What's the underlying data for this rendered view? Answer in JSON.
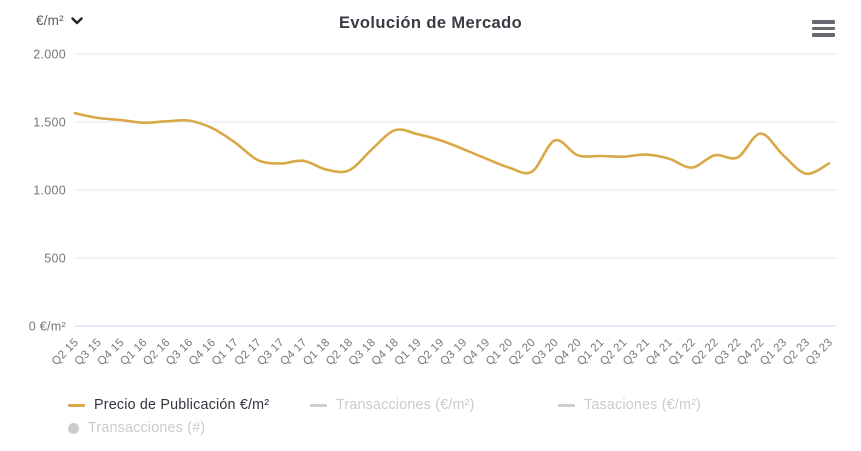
{
  "header": {
    "unit_selector": {
      "label": "€/m²",
      "icon": "chevron-down-icon"
    },
    "title": "Evolución de Mercado",
    "menu_icon": "hamburger-icon"
  },
  "y_axis": {
    "ticks": [
      {
        "value": 2000,
        "label": "2.000"
      },
      {
        "value": 1500,
        "label": "1.500"
      },
      {
        "value": 1000,
        "label": "1.000"
      },
      {
        "value": 500,
        "label": "500"
      },
      {
        "value": 0,
        "label": "0 €/m²"
      }
    ]
  },
  "legend": [
    {
      "id": "precio-de-publicacion",
      "label": "Precio de Publicación €/m²",
      "marker": "line",
      "color": "#d9a847",
      "active": true,
      "row": 1
    },
    {
      "id": "transacciones-eur-m2",
      "label": "Transacciones (€/m²)",
      "marker": "line",
      "color": "#cccccc",
      "active": false,
      "row": 1
    },
    {
      "id": "tasaciones-eur-m2",
      "label": "Tasaciones (€/m²)",
      "marker": "line",
      "color": "#cccccc",
      "active": false,
      "row": 1
    },
    {
      "id": "transacciones-num",
      "label": "Transacciones (#)",
      "marker": "circle",
      "color": "#cccccc",
      "active": false,
      "row": 2
    }
  ],
  "colors": {
    "series_gold": "#d9a847",
    "disabled_gray": "#cccccc"
  },
  "chart_data": {
    "type": "line",
    "title": "Evolución de Mercado",
    "xlabel": "",
    "ylabel": "€/m²",
    "ylim": [
      0,
      2000
    ],
    "grid": true,
    "legend_position": "bottom",
    "categories": [
      "Q2 15",
      "Q3 15",
      "Q4 15",
      "Q1 16",
      "Q2 16",
      "Q3 16",
      "Q4 16",
      "Q1 17",
      "Q2 17",
      "Q3 17",
      "Q4 17",
      "Q1 18",
      "Q2 18",
      "Q3 18",
      "Q4 18",
      "Q1 19",
      "Q2 19",
      "Q3 19",
      "Q4 19",
      "Q1 20",
      "Q2 20",
      "Q3 20",
      "Q4 20",
      "Q1 21",
      "Q2 21",
      "Q3 21",
      "Q4 21",
      "Q1 22",
      "Q2 22",
      "Q3 22",
      "Q4 22",
      "Q1 23",
      "Q2 23",
      "Q3 23"
    ],
    "series": [
      {
        "name": "Precio de Publicación €/m²",
        "color": "#d9a847",
        "values": [
          1565,
          1530,
          1515,
          1495,
          1505,
          1510,
          1455,
          1350,
          1220,
          1195,
          1215,
          1150,
          1145,
          1300,
          1440,
          1410,
          1365,
          1300,
          1230,
          1165,
          1135,
          1365,
          1255,
          1250,
          1245,
          1260,
          1230,
          1165,
          1255,
          1240,
          1415,
          1255,
          1120,
          1195
        ]
      }
    ]
  }
}
